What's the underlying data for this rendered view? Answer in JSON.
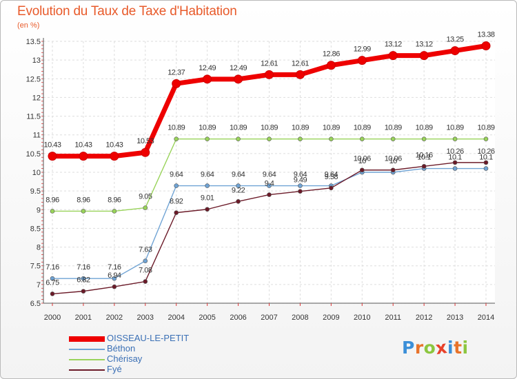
{
  "chart_data": {
    "type": "line",
    "title": "Evolution du Taux de Taxe d'Habitation",
    "subtitle": "(en %)",
    "categories": [
      "2000",
      "2001",
      "2002",
      "2003",
      "2004",
      "2005",
      "2006",
      "2007",
      "2008",
      "2009",
      "2010",
      "2011",
      "2012",
      "2013",
      "2014"
    ],
    "ylim": [
      6.5,
      13.5
    ],
    "yticks": [
      "6.5",
      "7",
      "7.5",
      "8",
      "8.5",
      "9",
      "9.5",
      "10",
      "10.5",
      "11",
      "11.5",
      "12",
      "12.5",
      "13",
      "13.5"
    ],
    "grid": true,
    "legend_position": "bottom-left",
    "series": [
      {
        "name": "OISSEAU-LE-PETIT",
        "color": "#ee0000",
        "values": [
          10.43,
          10.43,
          10.43,
          10.53,
          12.37,
          12.49,
          12.49,
          12.61,
          12.61,
          12.86,
          12.99,
          13.12,
          13.12,
          13.25,
          13.38
        ],
        "labels": [
          "10.43",
          "10.43",
          "10.43",
          "10.53",
          "12.37",
          "12.49",
          "12.49",
          "12.61",
          "12.61",
          "12.86",
          "12.99",
          "13.12",
          "13.12",
          "13.25",
          "13.38"
        ]
      },
      {
        "name": "Béthon",
        "color": "#6fa3d4",
        "values": [
          7.16,
          7.16,
          7.16,
          7.63,
          9.64,
          9.64,
          9.64,
          9.64,
          9.64,
          9.64,
          10.0,
          10.0,
          10.1,
          10.1,
          10.1
        ],
        "labels": [
          "7.16",
          "7.16",
          "7.16",
          "7.63",
          "9.64",
          "9.64",
          "9.64",
          "9.64",
          "9.64",
          "9.64",
          "10",
          "10",
          "10.1",
          "10.1",
          "10.1"
        ]
      },
      {
        "name": "Chérisay",
        "color": "#99d35a",
        "values": [
          8.96,
          8.96,
          8.96,
          9.05,
          10.89,
          10.89,
          10.89,
          10.89,
          10.89,
          10.89,
          10.89,
          10.89,
          10.89,
          10.89,
          10.89
        ],
        "labels": [
          "8.96",
          "8.96",
          "8.96",
          "9.05",
          "10.89",
          "10.89",
          "10.89",
          "10.89",
          "10.89",
          "10.89",
          "10.89",
          "10.89",
          "10.89",
          "10.89",
          "10.89"
        ]
      },
      {
        "name": "Fyé",
        "color": "#6b1a28",
        "values": [
          6.75,
          6.82,
          6.94,
          7.08,
          8.92,
          9.01,
          9.22,
          9.4,
          9.49,
          9.58,
          10.06,
          10.06,
          10.16,
          10.26,
          10.26
        ],
        "labels": [
          "6.75",
          "6.82",
          "6.94",
          "7.08",
          "8.92",
          "9.01",
          "9.22",
          "9.4",
          "9.49",
          "9.58",
          "10.06",
          "10.06",
          "10.16",
          "10.26",
          "10.26"
        ]
      }
    ]
  },
  "brand": {
    "letters": [
      "P",
      "r",
      "o",
      "x",
      "i",
      "t",
      "i"
    ],
    "colors": [
      "#3b8fd8",
      "#e8732a",
      "#8cc63f",
      "#e8412a",
      "#3b8fd8",
      "#e8732a",
      "#8cc63f"
    ]
  }
}
